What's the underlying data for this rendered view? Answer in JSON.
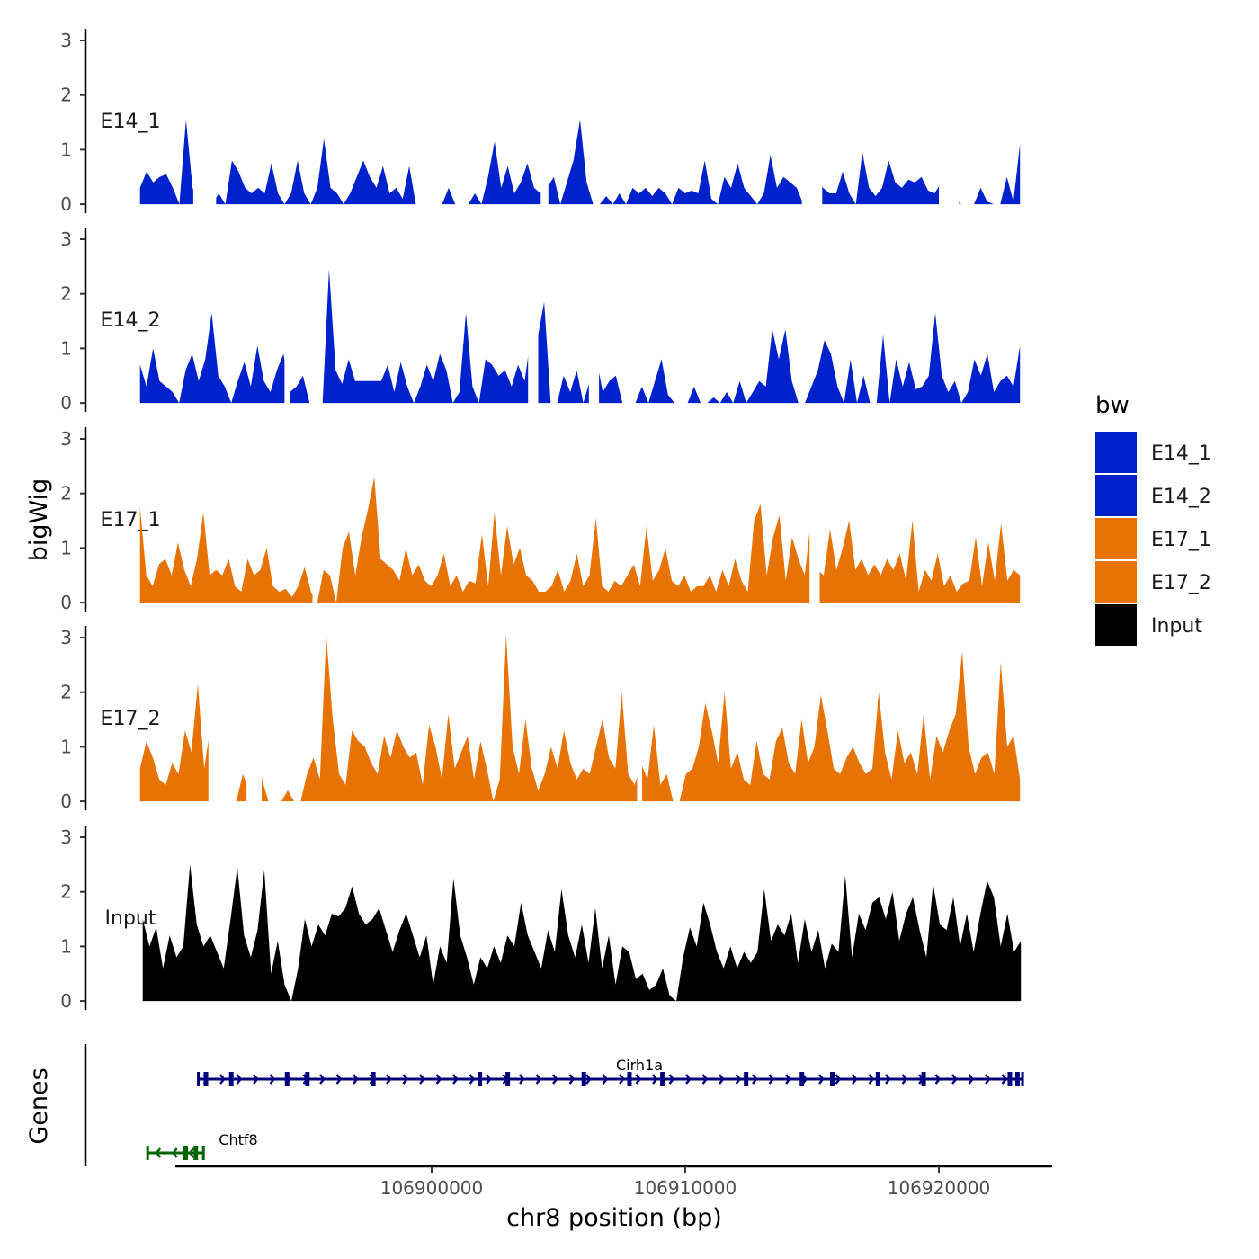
{
  "chart_data": {
    "type": "area",
    "xlabel": "chr8 position (bp)",
    "ylabel": "bigWig",
    "genes_label": "Genes",
    "xlim": [
      106887000,
      106924000
    ],
    "x_ticks": [
      106900000,
      106910000,
      106920000
    ],
    "x_tick_labels": [
      "106900000",
      "106910000",
      "106920000"
    ],
    "ylim": [
      0,
      3
    ],
    "y_ticks": [
      0,
      1,
      2,
      3
    ],
    "y_tick_labels": [
      "0",
      "1",
      "2",
      "3"
    ],
    "legend": {
      "title": "bw",
      "position": "right",
      "entries": [
        {
          "label": "E14_1",
          "color": "#0022cc"
        },
        {
          "label": "E14_2",
          "color": "#0022cc"
        },
        {
          "label": "E17_1",
          "color": "#e87305"
        },
        {
          "label": "E17_2",
          "color": "#e87305"
        },
        {
          "label": "Input",
          "color": "#000000"
        }
      ]
    },
    "signal_range": [
      106888500,
      106923200
    ],
    "series": [
      {
        "name": "E14_1",
        "color": "#0022cc",
        "values": [
          0.3,
          0.6,
          0.4,
          0.5,
          0.55,
          0.3,
          0,
          1.55,
          0.3,
          0,
          0,
          0,
          0.2,
          0,
          0.8,
          0.6,
          0.3,
          0.2,
          0.3,
          0.2,
          0.75,
          0.2,
          0,
          0.2,
          0.8,
          0.2,
          0,
          0.3,
          1.2,
          0.3,
          0.2,
          0,
          0.2,
          0.5,
          0.8,
          0.5,
          0.3,
          0.7,
          0.2,
          0.3,
          0.1,
          0.7,
          0,
          0,
          0,
          0,
          0,
          0.3,
          0,
          0,
          0,
          0.2,
          0,
          0.5,
          1.15,
          0.3,
          0.7,
          0.2,
          0.4,
          0.75,
          0.3,
          0.2,
          0.3,
          0.5,
          0,
          0.4,
          0.8,
          1.55,
          0.4,
          0,
          0,
          0.15,
          0,
          0.2,
          0,
          0.3,
          0.2,
          0.3,
          0.15,
          0.3,
          0.2,
          0,
          0.3,
          0.2,
          0.25,
          0.2,
          0.8,
          0.1,
          0,
          0.5,
          0.3,
          0.75,
          0.3,
          0.15,
          0,
          0.2,
          0.9,
          0.3,
          0.5,
          0.4,
          0.3,
          0,
          0,
          0.5,
          0.3,
          0.2,
          0.2,
          0.6,
          0.2,
          0,
          0.95,
          0.3,
          0.15,
          0.3,
          0.8,
          0.4,
          0.3,
          0.45,
          0.4,
          0.5,
          0.25,
          0.2,
          0.4,
          0.2,
          0.2,
          0,
          0,
          0,
          0.3,
          0.05,
          0,
          0,
          0.5,
          0.05,
          1.1
        ],
        "gaps": [
          [
            106890600,
            106891500
          ],
          [
            106904300,
            106904600
          ],
          [
            106914600,
            106915400
          ],
          [
            106920000,
            106920800
          ]
        ]
      },
      {
        "name": "E14_2",
        "color": "#0022cc",
        "values": [
          0.7,
          0.3,
          1.0,
          0.4,
          0.3,
          0.2,
          0,
          0.6,
          0.9,
          0.4,
          0.8,
          1.65,
          0.5,
          0.3,
          0,
          0.4,
          0.75,
          0.3,
          1.05,
          0.4,
          0.2,
          0.6,
          0.9,
          0.2,
          0.3,
          0.5,
          0,
          0,
          0,
          2.45,
          0.6,
          0.35,
          0.8,
          0.4,
          0.4,
          0.4,
          0.4,
          0.4,
          0.7,
          0.2,
          0.75,
          0.3,
          0,
          0.3,
          0.7,
          0.4,
          0.9,
          0.6,
          0,
          0.2,
          1.65,
          0.3,
          0,
          0.8,
          0.7,
          0.5,
          0.6,
          0.3,
          0.7,
          0.4,
          1.25,
          1.2,
          1.85,
          0,
          0,
          0.5,
          0.2,
          0.6,
          0,
          0.4,
          0.8,
          0.2,
          0.4,
          0.5,
          0,
          0,
          0,
          0.3,
          0,
          0.4,
          0.8,
          0.15,
          0,
          0,
          0,
          0.3,
          0,
          0,
          0.1,
          0,
          0.2,
          0,
          0.4,
          0,
          0.2,
          0.4,
          0.3,
          1.35,
          0.8,
          1.35,
          0.4,
          0,
          0,
          0.3,
          0.6,
          1.15,
          0.9,
          0.3,
          0,
          0.8,
          0,
          0.5,
          0,
          0,
          1.25,
          0,
          0.8,
          0.3,
          0.75,
          0.25,
          0.3,
          0.5,
          1.65,
          0.5,
          0.2,
          0.4,
          0,
          0.2,
          0.8,
          0.5,
          0.9,
          0.2,
          0.4,
          0.5,
          0.3,
          1.05
        ],
        "gaps": [
          [
            106894200,
            106894400
          ],
          [
            106903800,
            106904200
          ],
          [
            106906200,
            106906600
          ]
        ]
      },
      {
        "name": "E17_1",
        "color": "#e87305",
        "values": [
          1.75,
          0.5,
          0.3,
          0.7,
          0.8,
          0.5,
          1.1,
          0.6,
          0.3,
          0.8,
          1.65,
          0.5,
          0.6,
          0.5,
          0.8,
          0.3,
          0.2,
          0.8,
          0.5,
          0.6,
          1.0,
          0.3,
          0.2,
          0.25,
          0.1,
          0.3,
          0.65,
          0.2,
          0,
          0.6,
          0.5,
          0,
          1.0,
          1.3,
          0.5,
          1.2,
          1.7,
          2.3,
          0.8,
          0.7,
          0.6,
          0.4,
          1.0,
          0.5,
          0.7,
          0.4,
          0.3,
          0.5,
          0.9,
          0.3,
          0.5,
          0.2,
          0.4,
          0.35,
          1.25,
          0.3,
          1.65,
          0.5,
          1.4,
          0.7,
          1.0,
          0.5,
          0.4,
          0.2,
          0.2,
          0.3,
          0.6,
          0.2,
          0.4,
          0.9,
          0.3,
          0.5,
          1.55,
          0.3,
          0.2,
          0.4,
          0.3,
          0.5,
          0.7,
          0.3,
          1.4,
          0.4,
          0.6,
          1.0,
          0.4,
          0.3,
          0.5,
          0.2,
          0.3,
          0.3,
          0.5,
          0.2,
          0.6,
          0.3,
          0.8,
          0.4,
          0.2,
          1.5,
          1.8,
          0.5,
          1.2,
          1.6,
          0.4,
          1.2,
          0.8,
          0.5,
          1.55,
          0.6,
          0.5,
          1.35,
          0.6,
          1.0,
          1.5,
          0.6,
          0.8,
          0.5,
          0.7,
          0.5,
          0.8,
          0.6,
          0.9,
          0.4,
          1.5,
          0.2,
          0.6,
          0.4,
          0.9,
          0.3,
          0.5,
          0.2,
          0.35,
          0.4,
          1.2,
          0.3,
          1.1,
          0.4,
          1.45,
          0.4,
          0.6,
          0.5
        ],
        "gaps": [
          [
            106895300,
            106895500
          ],
          [
            106914900,
            106915300
          ]
        ]
      },
      {
        "name": "E17_2",
        "color": "#e87305",
        "values": [
          0.6,
          1.1,
          0.8,
          0.4,
          0.3,
          0.7,
          0.5,
          1.3,
          0.9,
          2.15,
          0.6,
          1.4,
          0.5,
          0,
          0,
          0,
          0.5,
          0.2,
          1.3,
          0.4,
          0,
          0,
          0,
          0.2,
          0,
          0,
          0.5,
          0.8,
          0.4,
          3.05,
          1.5,
          0.5,
          0.3,
          1.3,
          1.1,
          1.0,
          0.7,
          0.5,
          1.2,
          0.8,
          1.3,
          1.0,
          0.8,
          0.9,
          0.3,
          1.4,
          1.0,
          0.4,
          1.6,
          0.6,
          0.9,
          1.2,
          0.4,
          1.1,
          0.6,
          0,
          0.4,
          3.05,
          1.0,
          0.5,
          1.5,
          0.6,
          0.2,
          0.5,
          1.0,
          0.6,
          1.3,
          0.7,
          0.4,
          0.6,
          0.5,
          1.0,
          1.5,
          0.8,
          0.6,
          2.0,
          0.5,
          0.3,
          0.7,
          0.4,
          1.4,
          0.3,
          0.5,
          0,
          0,
          0.5,
          0.6,
          1.0,
          1.8,
          1.3,
          0.7,
          2.0,
          0.6,
          0.9,
          0.4,
          0.3,
          1.1,
          0.5,
          0.4,
          1.1,
          1.35,
          0.7,
          0.5,
          1.5,
          0.7,
          1.0,
          1.95,
          1.3,
          0.6,
          0.5,
          0.8,
          1.0,
          0.7,
          0.5,
          0.6,
          2.0,
          0.9,
          0.4,
          1.3,
          0.7,
          0.9,
          0.5,
          1.6,
          0.4,
          1.2,
          0.9,
          1.3,
          1.6,
          2.75,
          1.0,
          0.5,
          0.8,
          0.9,
          0.5,
          2.55,
          1.0,
          1.2,
          0.4
        ],
        "gaps": [
          [
            106891200,
            106891900
          ],
          [
            106892700,
            106893300
          ],
          [
            106908100,
            106908300
          ]
        ]
      },
      {
        "name": "Input",
        "color": "#000000",
        "values": [
          1.5,
          1.0,
          1.35,
          0.6,
          1.2,
          0.8,
          1.0,
          2.5,
          1.4,
          1.0,
          1.2,
          0.9,
          0.6,
          1.5,
          2.45,
          1.2,
          0.8,
          1.3,
          2.4,
          0.5,
          1.1,
          0.3,
          0,
          0.6,
          1.5,
          1.0,
          1.4,
          1.2,
          1.6,
          1.55,
          1.7,
          2.1,
          1.6,
          1.4,
          1.5,
          1.7,
          1.3,
          0.9,
          1.3,
          1.6,
          1.2,
          0.8,
          1.2,
          0.3,
          1.0,
          0.7,
          2.25,
          1.2,
          0.8,
          0.3,
          0.8,
          0.6,
          1.0,
          0.7,
          1.2,
          1.0,
          1.8,
          1.2,
          0.9,
          0.6,
          1.3,
          0.9,
          2.05,
          1.2,
          0.8,
          1.4,
          0.7,
          1.7,
          0.6,
          1.2,
          0.3,
          1.0,
          0.9,
          0.4,
          0.5,
          0.2,
          0.3,
          0.6,
          0.1,
          0,
          0.8,
          1.35,
          1.0,
          1.8,
          1.4,
          0.9,
          0.6,
          1.0,
          0.6,
          0.9,
          0.7,
          0.9,
          2.05,
          1.1,
          1.4,
          1.2,
          1.6,
          0.7,
          1.5,
          0.9,
          1.3,
          0.6,
          1.05,
          0.9,
          2.3,
          0.8,
          1.6,
          1.3,
          1.8,
          1.9,
          1.5,
          2.0,
          1.1,
          1.6,
          1.9,
          1.3,
          0.8,
          2.15,
          1.4,
          1.3,
          1.9,
          1.0,
          1.6,
          0.9,
          1.6,
          2.2,
          1.9,
          1.0,
          1.6,
          0.9,
          1.1
        ],
        "gaps": []
      }
    ],
    "genes": [
      {
        "name": "Cirh1a",
        "strand": "+",
        "color": "#00007f",
        "start": 106890800,
        "end": 106923300,
        "exons": [
          106891100,
          106892100,
          106894300,
          106895100,
          106897700,
          106901900,
          106903000,
          106906000,
          106907800,
          106909100,
          106912400,
          106914600,
          106915800,
          106917600,
          106919400,
          106922800,
          106923100
        ]
      },
      {
        "name": "Chtf8",
        "strand": "-",
        "color": "#006400",
        "start": 106888800,
        "end": 106891000,
        "exons": [
          106890300,
          106890700
        ]
      }
    ]
  }
}
